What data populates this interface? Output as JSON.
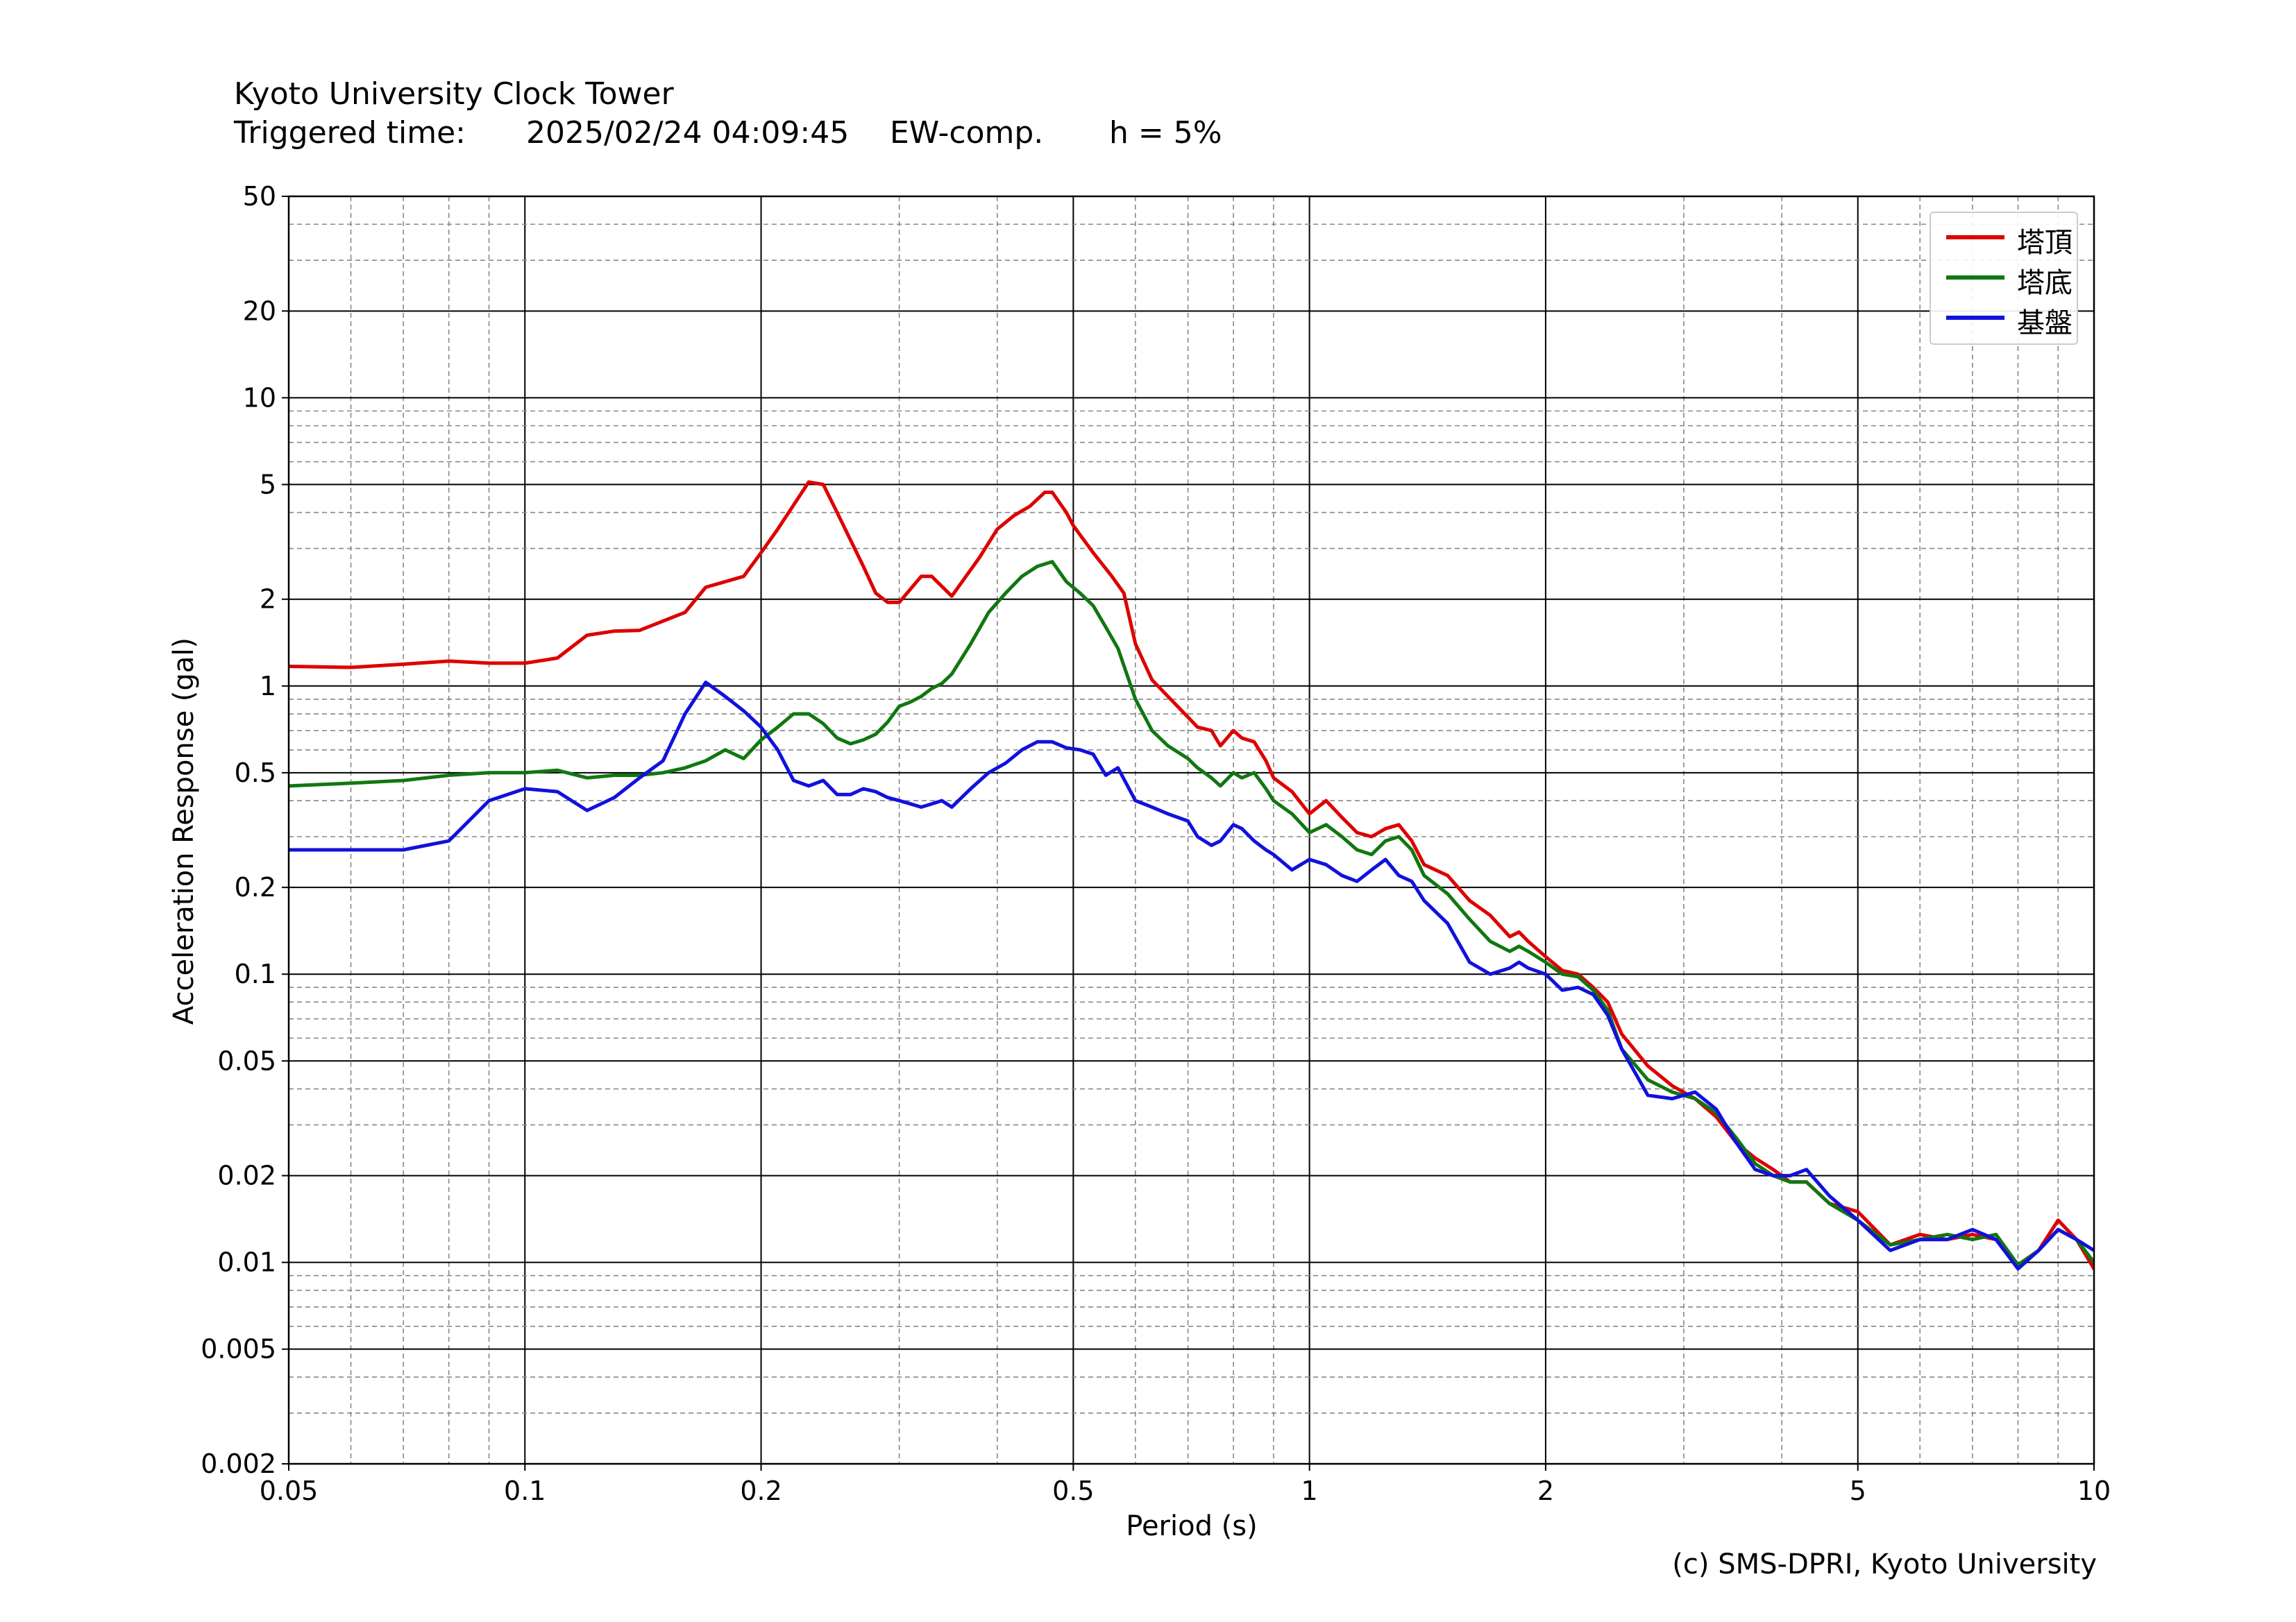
{
  "header": {
    "title": "Kyoto University Clock Tower",
    "triggered_label": "Triggered time:",
    "triggered_time": "2025/02/24 04:09:45",
    "component": "EW-comp.",
    "damping": "h = 5%"
  },
  "credit": "(c) SMS-DPRI, Kyoto University",
  "chart_data": {
    "type": "line",
    "xlabel": "Period (s)",
    "ylabel": "Acceleration Response (gal)",
    "x_scale": "log",
    "y_scale": "log",
    "xlim": [
      0.05,
      10
    ],
    "ylim": [
      0.002,
      50
    ],
    "x_ticks": [
      0.05,
      0.1,
      0.2,
      0.5,
      1,
      2,
      5,
      10
    ],
    "x_tick_labels": [
      "0.05",
      "0.1",
      "0.2",
      "0.5",
      "1",
      "2",
      "5",
      "10"
    ],
    "y_ticks": [
      0.002,
      0.005,
      0.01,
      0.02,
      0.05,
      0.1,
      0.2,
      0.5,
      1,
      2,
      5,
      10,
      20,
      50
    ],
    "y_tick_labels": [
      "0.002",
      "0.005",
      "0.01",
      "0.02",
      "0.05",
      "0.1",
      "0.2",
      "0.5",
      "1",
      "2",
      "5",
      "10",
      "20",
      "50"
    ],
    "grid": "major solid, minor dashed",
    "legend_position": "top-right",
    "series": [
      {
        "name": "塔頂",
        "color": "#dd0000",
        "x": [
          0.05,
          0.06,
          0.07,
          0.08,
          0.09,
          0.1,
          0.11,
          0.12,
          0.13,
          0.14,
          0.16,
          0.17,
          0.19,
          0.2,
          0.21,
          0.23,
          0.24,
          0.25,
          0.27,
          0.28,
          0.29,
          0.3,
          0.32,
          0.33,
          0.35,
          0.38,
          0.4,
          0.42,
          0.44,
          0.46,
          0.47,
          0.49,
          0.5,
          0.53,
          0.56,
          0.58,
          0.6,
          0.63,
          0.66,
          0.7,
          0.72,
          0.75,
          0.77,
          0.8,
          0.82,
          0.85,
          0.88,
          0.9,
          0.95,
          1.0,
          1.05,
          1.1,
          1.15,
          1.2,
          1.25,
          1.3,
          1.35,
          1.4,
          1.5,
          1.6,
          1.7,
          1.8,
          1.85,
          1.9,
          2.0,
          2.1,
          2.2,
          2.3,
          2.4,
          2.5,
          2.7,
          2.9,
          3.1,
          3.3,
          3.5,
          3.7,
          3.9,
          4.1,
          4.3,
          4.6,
          5.0,
          5.5,
          6.0,
          6.5,
          7.0,
          7.5,
          8.0,
          8.5,
          9.0,
          9.5,
          10.0
        ],
        "values": [
          1.17,
          1.16,
          1.19,
          1.22,
          1.2,
          1.2,
          1.25,
          1.5,
          1.55,
          1.56,
          1.8,
          2.2,
          2.4,
          2.9,
          3.5,
          5.1,
          5.0,
          4.0,
          2.6,
          2.1,
          1.95,
          1.95,
          2.4,
          2.4,
          2.05,
          2.8,
          3.5,
          3.9,
          4.2,
          4.7,
          4.7,
          4.0,
          3.6,
          2.9,
          2.4,
          2.1,
          1.4,
          1.05,
          0.92,
          0.78,
          0.72,
          0.7,
          0.62,
          0.7,
          0.66,
          0.64,
          0.55,
          0.48,
          0.43,
          0.36,
          0.4,
          0.35,
          0.31,
          0.3,
          0.32,
          0.33,
          0.29,
          0.24,
          0.22,
          0.18,
          0.16,
          0.135,
          0.14,
          0.13,
          0.115,
          0.103,
          0.1,
          0.09,
          0.08,
          0.062,
          0.048,
          0.041,
          0.037,
          0.032,
          0.026,
          0.023,
          0.021,
          0.019,
          0.019,
          0.016,
          0.015,
          0.0115,
          0.0125,
          0.012,
          0.0125,
          0.012,
          0.0098,
          0.011,
          0.014,
          0.012,
          0.0095
        ]
      },
      {
        "name": "塔底",
        "color": "#117711",
        "x": [
          0.05,
          0.06,
          0.07,
          0.08,
          0.09,
          0.1,
          0.11,
          0.12,
          0.13,
          0.14,
          0.15,
          0.16,
          0.17,
          0.18,
          0.19,
          0.2,
          0.21,
          0.22,
          0.23,
          0.24,
          0.25,
          0.26,
          0.27,
          0.28,
          0.29,
          0.3,
          0.31,
          0.32,
          0.33,
          0.34,
          0.35,
          0.37,
          0.39,
          0.41,
          0.43,
          0.45,
          0.47,
          0.49,
          0.51,
          0.53,
          0.55,
          0.57,
          0.6,
          0.63,
          0.66,
          0.7,
          0.72,
          0.75,
          0.77,
          0.8,
          0.82,
          0.85,
          0.88,
          0.9,
          0.95,
          1.0,
          1.05,
          1.1,
          1.15,
          1.2,
          1.25,
          1.3,
          1.35,
          1.4,
          1.5,
          1.6,
          1.7,
          1.8,
          1.85,
          1.9,
          2.0,
          2.1,
          2.2,
          2.3,
          2.4,
          2.5,
          2.7,
          2.9,
          3.1,
          3.3,
          3.5,
          3.7,
          3.9,
          4.1,
          4.3,
          4.6,
          5.0,
          5.5,
          6.0,
          6.5,
          7.0,
          7.5,
          8.0,
          8.5,
          9.0,
          9.5,
          10.0
        ],
        "values": [
          0.45,
          0.46,
          0.47,
          0.49,
          0.5,
          0.5,
          0.51,
          0.48,
          0.49,
          0.49,
          0.5,
          0.52,
          0.55,
          0.6,
          0.56,
          0.65,
          0.72,
          0.8,
          0.8,
          0.74,
          0.66,
          0.63,
          0.65,
          0.68,
          0.75,
          0.85,
          0.88,
          0.92,
          0.98,
          1.02,
          1.1,
          1.4,
          1.8,
          2.1,
          2.4,
          2.6,
          2.7,
          2.3,
          2.1,
          1.9,
          1.6,
          1.35,
          0.9,
          0.7,
          0.62,
          0.56,
          0.52,
          0.48,
          0.45,
          0.5,
          0.48,
          0.5,
          0.44,
          0.4,
          0.36,
          0.31,
          0.33,
          0.3,
          0.27,
          0.26,
          0.29,
          0.3,
          0.27,
          0.22,
          0.19,
          0.155,
          0.13,
          0.12,
          0.125,
          0.12,
          0.11,
          0.1,
          0.098,
          0.088,
          0.075,
          0.055,
          0.043,
          0.039,
          0.037,
          0.033,
          0.027,
          0.022,
          0.02,
          0.019,
          0.019,
          0.016,
          0.014,
          0.0115,
          0.012,
          0.0125,
          0.012,
          0.0125,
          0.0098,
          0.011,
          0.013,
          0.012,
          0.01
        ]
      },
      {
        "name": "基盤",
        "color": "#1111dd",
        "x": [
          0.05,
          0.06,
          0.07,
          0.08,
          0.09,
          0.1,
          0.11,
          0.12,
          0.13,
          0.14,
          0.15,
          0.16,
          0.17,
          0.18,
          0.19,
          0.2,
          0.21,
          0.22,
          0.23,
          0.24,
          0.25,
          0.26,
          0.27,
          0.28,
          0.29,
          0.3,
          0.31,
          0.32,
          0.33,
          0.34,
          0.35,
          0.37,
          0.39,
          0.41,
          0.43,
          0.45,
          0.47,
          0.49,
          0.51,
          0.53,
          0.55,
          0.57,
          0.6,
          0.63,
          0.66,
          0.7,
          0.72,
          0.75,
          0.77,
          0.8,
          0.82,
          0.85,
          0.88,
          0.9,
          0.95,
          1.0,
          1.05,
          1.1,
          1.15,
          1.2,
          1.25,
          1.3,
          1.35,
          1.4,
          1.5,
          1.6,
          1.7,
          1.8,
          1.85,
          1.9,
          2.0,
          2.1,
          2.2,
          2.3,
          2.4,
          2.5,
          2.7,
          2.9,
          3.1,
          3.3,
          3.5,
          3.7,
          3.9,
          4.1,
          4.3,
          4.6,
          5.0,
          5.5,
          6.0,
          6.5,
          7.0,
          7.5,
          8.0,
          8.5,
          9.0,
          9.5,
          10.0
        ],
        "values": [
          0.27,
          0.27,
          0.27,
          0.29,
          0.4,
          0.44,
          0.43,
          0.37,
          0.41,
          0.48,
          0.55,
          0.8,
          1.03,
          0.92,
          0.82,
          0.72,
          0.6,
          0.47,
          0.45,
          0.47,
          0.42,
          0.42,
          0.44,
          0.43,
          0.41,
          0.4,
          0.39,
          0.38,
          0.39,
          0.4,
          0.38,
          0.44,
          0.5,
          0.54,
          0.6,
          0.64,
          0.64,
          0.61,
          0.6,
          0.58,
          0.49,
          0.52,
          0.4,
          0.38,
          0.36,
          0.34,
          0.3,
          0.28,
          0.29,
          0.33,
          0.32,
          0.29,
          0.27,
          0.26,
          0.23,
          0.25,
          0.24,
          0.22,
          0.21,
          0.23,
          0.25,
          0.22,
          0.21,
          0.18,
          0.15,
          0.11,
          0.1,
          0.105,
          0.11,
          0.105,
          0.1,
          0.088,
          0.09,
          0.085,
          0.072,
          0.055,
          0.038,
          0.037,
          0.039,
          0.034,
          0.026,
          0.021,
          0.02,
          0.02,
          0.021,
          0.017,
          0.014,
          0.011,
          0.012,
          0.012,
          0.013,
          0.012,
          0.0095,
          0.011,
          0.013,
          0.012,
          0.011
        ]
      }
    ]
  }
}
